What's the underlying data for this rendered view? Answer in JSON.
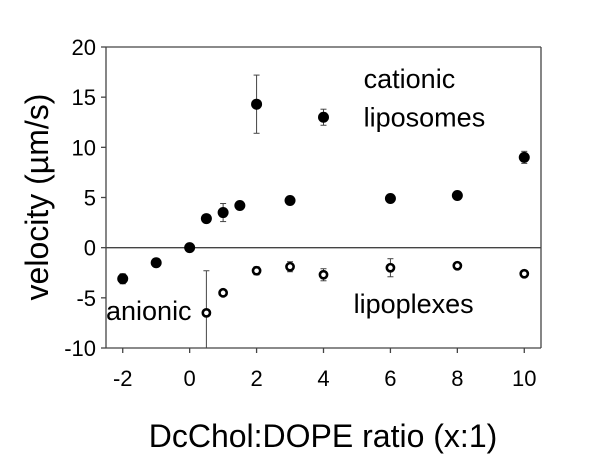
{
  "chart_data": {
    "type": "scatter",
    "title": "",
    "xlabel": "DcChol:DOPE ratio (x:1)",
    "ylabel": "velocity (µm/s)",
    "xlim": [
      -2.5,
      10.5
    ],
    "ylim": [
      -10,
      20
    ],
    "xticks": [
      -2,
      0,
      2,
      4,
      6,
      8,
      10
    ],
    "yticks": [
      -10,
      -5,
      0,
      5,
      10,
      15,
      20
    ],
    "zero_line": true,
    "series": [
      {
        "name": "cationic liposomes",
        "marker": "filled-circle",
        "points": [
          {
            "x": -2,
            "y": -3.1,
            "err": 0.5
          },
          {
            "x": -1,
            "y": -1.5,
            "err": 0.3
          },
          {
            "x": 0,
            "y": 0.0,
            "err": 0
          },
          {
            "x": 0.5,
            "y": 2.9,
            "err": 0
          },
          {
            "x": 1,
            "y": 3.5,
            "err": 0.9
          },
          {
            "x": 1.5,
            "y": 4.2,
            "err": 0.4
          },
          {
            "x": 2,
            "y": 14.3,
            "err": 2.9
          },
          {
            "x": 3,
            "y": 4.7,
            "err": 0
          },
          {
            "x": 4,
            "y": 13.0,
            "err": 0.8
          },
          {
            "x": 6,
            "y": 4.9,
            "err": 0
          },
          {
            "x": 8,
            "y": 5.2,
            "err": 0
          },
          {
            "x": 10,
            "y": 9.0,
            "err": 0.6
          }
        ]
      },
      {
        "name": "lipoplexes",
        "marker": "open-circle",
        "points": [
          {
            "x": 0.5,
            "y": -6.5,
            "err": 4.2
          },
          {
            "x": 1,
            "y": -4.5,
            "err": 0
          },
          {
            "x": 2,
            "y": -2.3,
            "err": 0.4
          },
          {
            "x": 3,
            "y": -1.9,
            "err": 0.5
          },
          {
            "x": 4,
            "y": -2.7,
            "err": 0.6
          },
          {
            "x": 6,
            "y": -2.0,
            "err": 0.9
          },
          {
            "x": 8,
            "y": -1.8,
            "err": 0.2
          },
          {
            "x": 10,
            "y": -2.6,
            "err": 0.2
          }
        ]
      }
    ],
    "annotations": [
      {
        "text": "cationic",
        "x": 5.2,
        "y": 15.9
      },
      {
        "text": "liposomes",
        "x": 5.2,
        "y": 12.1
      },
      {
        "text": "anionic",
        "x": -2.5,
        "y": -7.2
      },
      {
        "text": "lipoplexes",
        "x": 4.9,
        "y": -6.5
      }
    ]
  }
}
